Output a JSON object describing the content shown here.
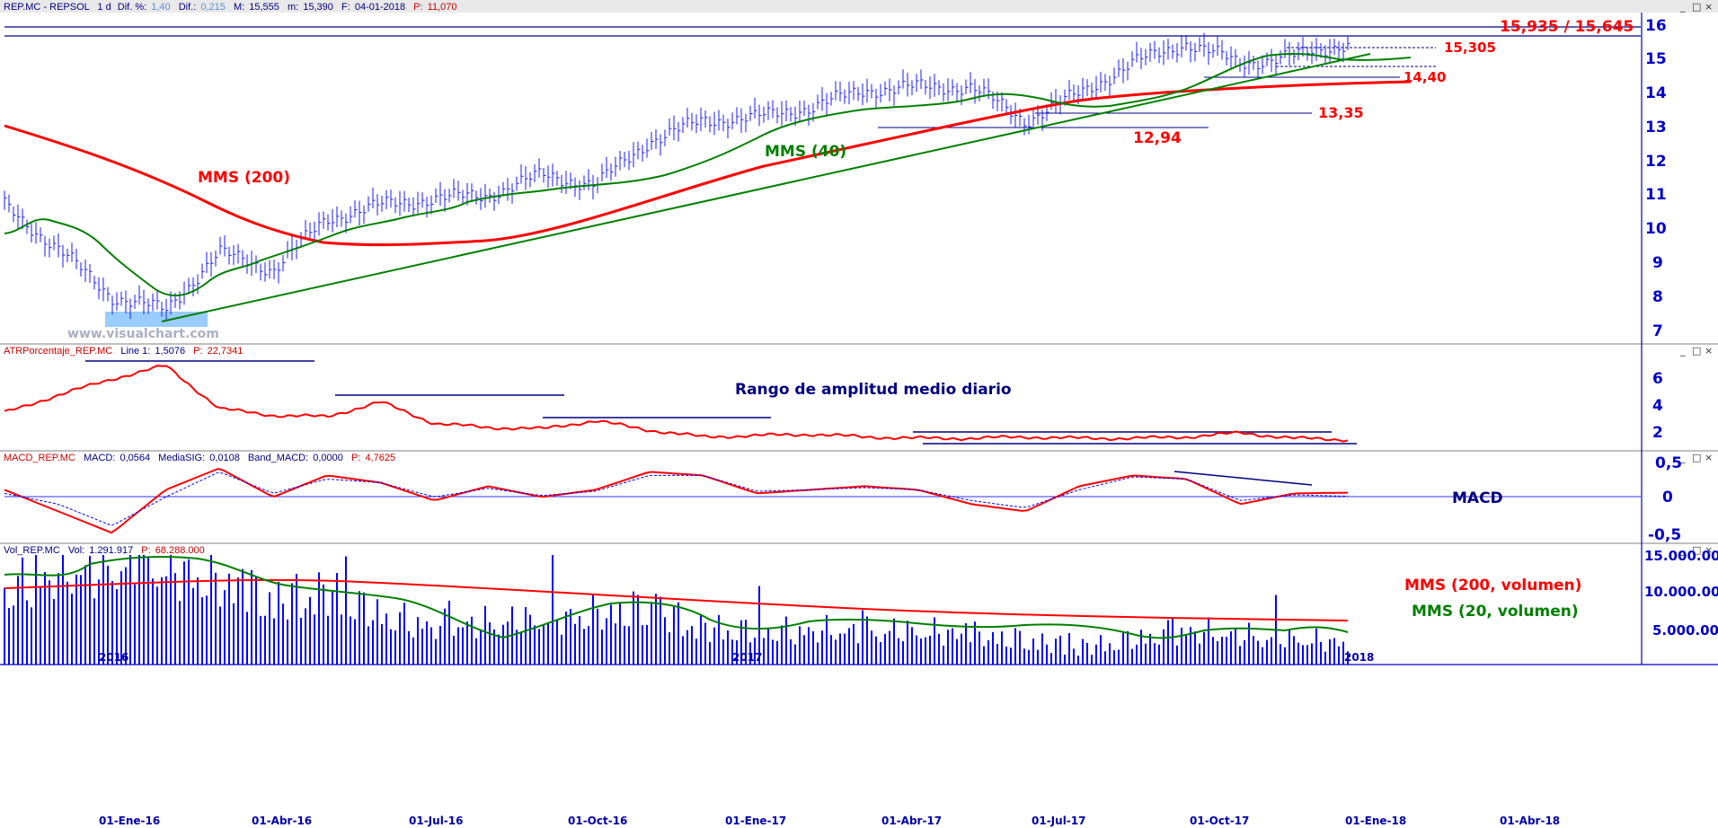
{
  "panels": {
    "price": {
      "header": {
        "symbol": "REP.MC - REPSOL",
        "interval": "1 d",
        "dif_pct_label": "Dif. %:",
        "dif_pct": "1,40",
        "dif_label": "Dif.:",
        "dif": "0,215",
        "max_label": "M:",
        "max": "15,555",
        "min_label": "m:",
        "min": "15,390",
        "date_label": "F:",
        "date": "04-01-2018",
        "p_label": "P:",
        "p": "11,070"
      },
      "y_ticks": [
        "16",
        "15",
        "14",
        "13",
        "12",
        "11",
        "10",
        "9",
        "8",
        "7"
      ]
    },
    "atr": {
      "header": {
        "name": "ATRPorcentaje_REP.MC",
        "line_label": "Line 1:",
        "line": "1,5076",
        "p_label": "P:",
        "p": "22,7341"
      },
      "y_ticks": [
        "6",
        "4",
        "2"
      ]
    },
    "macd": {
      "header": {
        "name": "MACD_REP.MC",
        "macd_label": "MACD:",
        "macd": "0,0564",
        "sig_label": "MediaSIG:",
        "sig": "0,0108",
        "band_label": "Band_MACD:",
        "band": "0,0000",
        "p_label": "P:",
        "p": "4,7625"
      },
      "y_ticks": [
        "0,5",
        "0",
        "-0,5"
      ]
    },
    "volume": {
      "header": {
        "name": "Vol_REP.MC",
        "vol_label": "Vol:",
        "vol": "1.291.917",
        "p_label": "P:",
        "p": "68.288.000"
      },
      "y_ticks": [
        "15.000.000",
        "10.000.000",
        "5.000.000"
      ],
      "year_marks": [
        "2016",
        "2017",
        "2018"
      ]
    }
  },
  "x_ticks": [
    "01-Ene-16",
    "01-Abr-16",
    "01-Jul-16",
    "01-Oct-16",
    "01-Ene-17",
    "01-Abr-17",
    "01-Jul-17",
    "01-Oct-17",
    "01-Ene-18",
    "01-Abr-18"
  ],
  "annotations": {
    "mms200": "MMS (200)",
    "mms40": "MMS (40)",
    "levels": "15,935 / 15,645",
    "l15305": "15,305",
    "l1440": "14,40",
    "l1335": "13,35",
    "l1294": "12,94",
    "watermark": "www.visualchart.com",
    "atr": "Rango de amplitud medio diario",
    "macd": "MACD",
    "vol200": "MMS (200, volumen)",
    "vol20": "MMS (20, volumen)"
  },
  "window_controls": {
    "minimize": "_",
    "restore": "□",
    "close": "×"
  },
  "colors": {
    "price_bars": "#1a1aff",
    "ma200": "#ff0000",
    "ma40": "#008000",
    "trendline": "#008000",
    "level_lines": "#000080",
    "atr_line": "#ff0000",
    "macd_line": "#ff0000",
    "macd_signal": "#0000ff",
    "volume_bars": "#0000ff",
    "vol_ma200": "#ff0000",
    "vol_ma20": "#008000",
    "axis_text": "#0000c8",
    "highlight": "#99ccff"
  },
  "chart_data": [
    {
      "type": "line",
      "panel": "price",
      "title": "REP.MC - REPSOL",
      "x": [
        "2015-12-01",
        "2016-01-01",
        "2016-02-01",
        "2016-03-01",
        "2016-04-01",
        "2016-05-01",
        "2016-06-01",
        "2016-07-01",
        "2016-08-01",
        "2016-09-01",
        "2016-10-01",
        "2016-11-01",
        "2016-12-01",
        "2017-01-01",
        "2017-02-01",
        "2017-03-01",
        "2017-04-01",
        "2017-05-01",
        "2017-06-01",
        "2017-07-01",
        "2017-08-01",
        "2017-09-01",
        "2017-10-01",
        "2017-11-01",
        "2017-12-01",
        "2018-01-04"
      ],
      "series": [
        {
          "name": "Precio",
          "values": [
            10.7,
            9.4,
            8.0,
            7.6,
            9.3,
            8.8,
            10.3,
            10.7,
            10.9,
            11.0,
            11.6,
            11.3,
            12.6,
            13.2,
            13.3,
            13.6,
            14.1,
            14.2,
            14.2,
            13.2,
            14.0,
            14.9,
            15.5,
            14.9,
            15.1,
            15.5
          ]
        },
        {
          "name": "MMS (40)",
          "values": [
            9.9,
            9.8,
            8.9,
            8.1,
            8.3,
            8.8,
            9.3,
            10.1,
            10.4,
            10.7,
            10.9,
            11.1,
            11.6,
            12.3,
            12.9,
            13.3,
            13.5,
            13.9,
            14.0,
            13.7,
            13.5,
            14.3,
            15.0,
            15.0,
            15.0,
            15.0
          ]
        },
        {
          "name": "MMS (200)",
          "values": [
            13.0,
            12.3,
            11.5,
            10.9,
            10.2,
            9.7,
            9.5,
            9.6,
            9.7,
            9.9,
            10.2,
            10.6,
            11.0,
            11.5,
            11.9,
            12.3,
            12.6,
            12.9,
            13.1,
            13.3,
            13.6,
            13.8,
            14.0,
            14.1,
            14.2,
            14.3
          ]
        }
      ],
      "trendline": {
        "x": [
          "2016-01-15",
          "2018-01-04"
        ],
        "y": [
          7.3,
          15.1
        ]
      },
      "levels": [
        15.935,
        15.645,
        15.305,
        14.4,
        13.35,
        12.94
      ],
      "ylim": [
        6.6,
        16.4
      ],
      "ylabel": "",
      "xlabel": ""
    },
    {
      "type": "line",
      "panel": "atr",
      "title": "ATRPorcentaje_REP.MC",
      "x": [
        "2015-12-01",
        "2016-01-01",
        "2016-02-01",
        "2016-03-01",
        "2016-04-01",
        "2016-05-01",
        "2016-06-01",
        "2016-07-01",
        "2016-08-01",
        "2016-09-01",
        "2016-10-01",
        "2016-11-01",
        "2016-12-01",
        "2017-01-01",
        "2017-02-01",
        "2017-03-01",
        "2017-04-01",
        "2017-05-01",
        "2017-06-01",
        "2017-07-01",
        "2017-08-01",
        "2017-09-01",
        "2017-10-01",
        "2017-11-01",
        "2017-12-01",
        "2018-01-04"
      ],
      "values": [
        3.5,
        4.8,
        6.0,
        7.0,
        3.8,
        3.3,
        3.2,
        4.3,
        2.7,
        2.4,
        2.3,
        2.9,
        2.2,
        1.7,
        1.8,
        1.9,
        1.7,
        1.6,
        1.6,
        1.7,
        1.6,
        1.6,
        1.7,
        2.0,
        1.6,
        1.5
      ],
      "ylim": [
        0.8,
        7.6
      ]
    },
    {
      "type": "line",
      "panel": "macd",
      "title": "MACD_REP.MC",
      "x": [
        "2015-12-01",
        "2016-01-01",
        "2016-02-01",
        "2016-03-01",
        "2016-04-01",
        "2016-05-01",
        "2016-06-01",
        "2016-07-01",
        "2016-08-01",
        "2016-09-01",
        "2016-10-01",
        "2016-11-01",
        "2016-12-01",
        "2017-01-01",
        "2017-02-01",
        "2017-03-01",
        "2017-04-01",
        "2017-05-01",
        "2017-06-01",
        "2017-07-01",
        "2017-08-01",
        "2017-09-01",
        "2017-10-01",
        "2017-11-01",
        "2017-12-01",
        "2018-01-04"
      ],
      "series": [
        {
          "name": "MACD",
          "values": [
            0.1,
            -0.2,
            -0.5,
            0.1,
            0.4,
            0.0,
            0.3,
            0.2,
            -0.05,
            0.15,
            0.0,
            0.1,
            0.35,
            0.3,
            0.05,
            0.1,
            0.15,
            0.1,
            -0.1,
            -0.2,
            0.15,
            0.3,
            0.25,
            -0.1,
            0.05,
            0.06
          ]
        },
        {
          "name": "MediaSIG",
          "values": [
            0.05,
            -0.1,
            -0.4,
            0.0,
            0.35,
            0.05,
            0.25,
            0.2,
            0.0,
            0.12,
            0.02,
            0.08,
            0.3,
            0.3,
            0.08,
            0.1,
            0.13,
            0.1,
            -0.05,
            -0.15,
            0.1,
            0.28,
            0.25,
            -0.05,
            0.03,
            0.01
          ]
        }
      ],
      "ylim": [
        -0.62,
        0.48
      ]
    },
    {
      "type": "bar",
      "panel": "volume",
      "title": "Vol_REP.MC",
      "x": [
        "2015-12-01",
        "2016-01-01",
        "2016-02-01",
        "2016-03-01",
        "2016-04-01",
        "2016-05-01",
        "2016-06-01",
        "2016-07-01",
        "2016-08-01",
        "2016-09-01",
        "2016-10-01",
        "2016-11-01",
        "2016-12-01",
        "2017-01-01",
        "2017-02-01",
        "2017-03-01",
        "2017-04-01",
        "2017-05-01",
        "2017-06-01",
        "2017-07-01",
        "2017-08-01",
        "2017-09-01",
        "2017-10-01",
        "2017-11-01",
        "2017-12-01",
        "2018-01-04"
      ],
      "values": [
        11000000,
        13000000,
        14000000,
        14000000,
        12000000,
        10000000,
        11000000,
        8000000,
        6500000,
        7000000,
        7500000,
        8000000,
        9000000,
        6500000,
        6000000,
        6000000,
        6000000,
        6000000,
        5500000,
        5000000,
        4000000,
        5000000,
        6000000,
        5500000,
        5000000,
        4500000
      ],
      "series": [
        {
          "name": "MMS (20, volumen)",
          "values": [
            11500000,
            12000000,
            13500000,
            13000000,
            12000000,
            10500000,
            10000000,
            9000000,
            7000000,
            6500000,
            7000000,
            7200000,
            8500000,
            7500000,
            6500000,
            6200000,
            6000000,
            6000000,
            5800000,
            5200000,
            4000000,
            4800000,
            5500000,
            5500000,
            5200000,
            4800000
          ]
        },
        {
          "name": "MMS (200, volumen)",
          "values": [
            10000000,
            10300000,
            10800000,
            11200000,
            11300000,
            11200000,
            10900000,
            10500000,
            10000000,
            9600000,
            9200000,
            8900000,
            8500000,
            8200000,
            7900000,
            7700000,
            7500000,
            7300000,
            7100000,
            6900000,
            6700000,
            6500000,
            6400000,
            6200000,
            6100000,
            6000000
          ]
        }
      ],
      "ylim": [
        1800000,
        15000000
      ]
    }
  ]
}
